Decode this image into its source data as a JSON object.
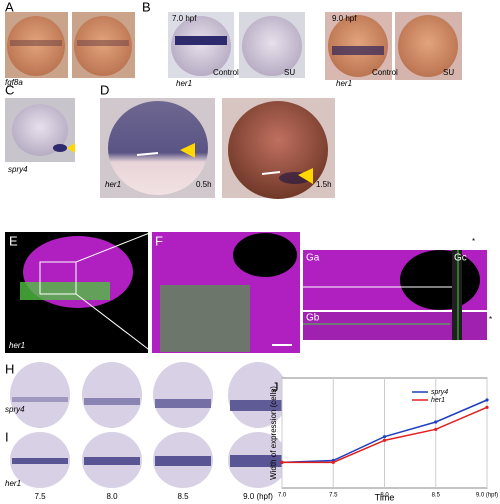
{
  "panels": {
    "A": {
      "letter": "A",
      "gene": "fgf8a"
    },
    "B": {
      "letter": "B",
      "stage1": "7.0 hpf",
      "stage2": "9.0 hpf",
      "gene": "her1",
      "control": "Control",
      "treated": "SU"
    },
    "C": {
      "letter": "C",
      "gene": "spry4"
    },
    "D": {
      "letter": "D",
      "gene": "her1",
      "time1": "0.5h",
      "time2": "1.5h"
    },
    "E": {
      "letter": "E",
      "gene": "her1"
    },
    "F": {
      "letter": "F"
    },
    "G": {
      "a": "Ga",
      "b": "Gb",
      "c": "Gc",
      "star": "*"
    },
    "H": {
      "letter": "H",
      "gene": "spry4"
    },
    "I": {
      "letter": "I",
      "gene": "her1",
      "stages": [
        "7.5",
        "8.0",
        "8.5",
        "9.0 (hpf)"
      ]
    }
  },
  "chart_data": {
    "type": "line",
    "title": "J",
    "x_label": "Time",
    "y_label": "Width of expression (cells)",
    "x": [
      7,
      7.5,
      8,
      8.5,
      9
    ],
    "series": [
      {
        "name": "spry4",
        "color": "#1f3fbf",
        "values": [
          7,
          7.5,
          14,
          18,
          24
        ]
      },
      {
        "name": "her1",
        "color": "#e02020",
        "values": [
          7,
          7,
          13,
          16,
          22
        ]
      }
    ],
    "xlim": [
      7,
      9
    ],
    "ylim": [
      0,
      30
    ],
    "xticks": [
      {
        "value": 7,
        "label": "7.0"
      },
      {
        "value": 7.5,
        "label": "7.5"
      },
      {
        "value": 8,
        "label": "8.0"
      },
      {
        "value": 8.5,
        "label": "8.5"
      },
      {
        "value": 9,
        "label": "9.0 (hpf)"
      }
    ],
    "grid": true
  }
}
